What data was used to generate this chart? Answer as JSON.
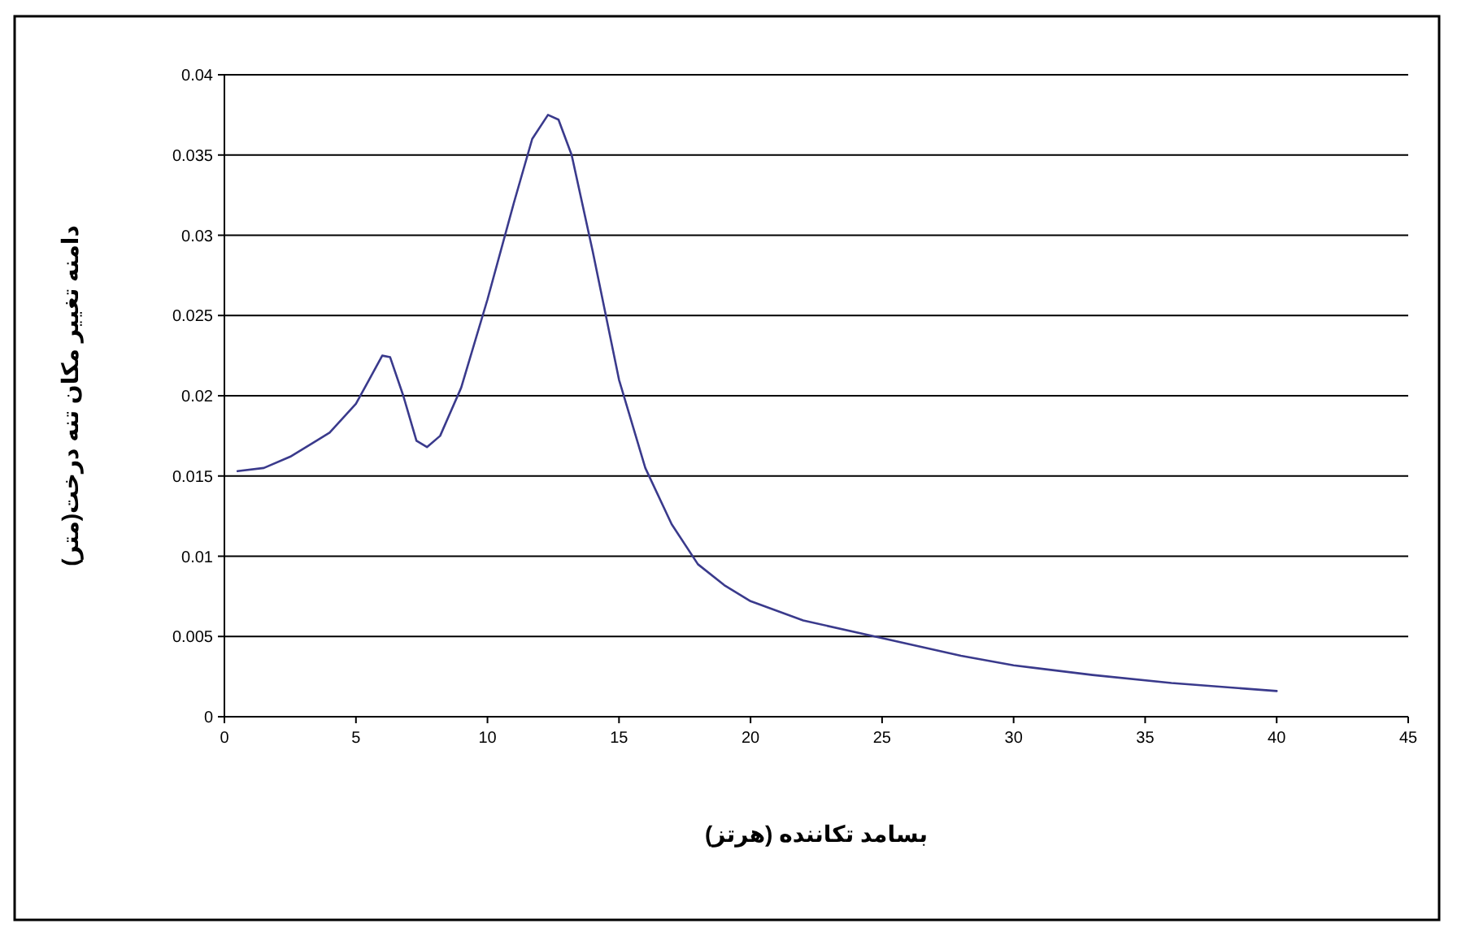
{
  "chart_data": {
    "type": "line",
    "xlabel": "بسامد تکاننده (هرتز)",
    "ylabel": "دامنه تغییر مکان تنه درخت(متر)",
    "series": [
      {
        "color": "#3a3a8c",
        "x": [
          0.5,
          1.5,
          2.5,
          3.5,
          4,
          5,
          5.5,
          6,
          6.3,
          6.8,
          7.3,
          7.7,
          8.2,
          9,
          10,
          11,
          11.7,
          12.3,
          12.7,
          13.2,
          14,
          15,
          16,
          17,
          18,
          19,
          20,
          22,
          25,
          28,
          30,
          33,
          36,
          40
        ],
        "values": [
          0.0153,
          0.0155,
          0.0162,
          0.0172,
          0.0177,
          0.0195,
          0.021,
          0.0225,
          0.0224,
          0.02,
          0.0172,
          0.0168,
          0.0175,
          0.0205,
          0.026,
          0.032,
          0.036,
          0.0375,
          0.0372,
          0.035,
          0.029,
          0.021,
          0.0155,
          0.012,
          0.0095,
          0.0082,
          0.0072,
          0.006,
          0.0049,
          0.0038,
          0.0032,
          0.0026,
          0.0021,
          0.0016
        ]
      }
    ],
    "xlim": [
      0,
      45
    ],
    "xticks": [
      0,
      5,
      10,
      15,
      20,
      25,
      30,
      35,
      40,
      45
    ],
    "ylim": [
      0,
      0.04
    ],
    "yticks": [
      0,
      0.005,
      0.01,
      0.015,
      0.02,
      0.025,
      0.03,
      0.035,
      0.04
    ],
    "grid": "y",
    "marker": "none",
    "line_style": "solid"
  }
}
